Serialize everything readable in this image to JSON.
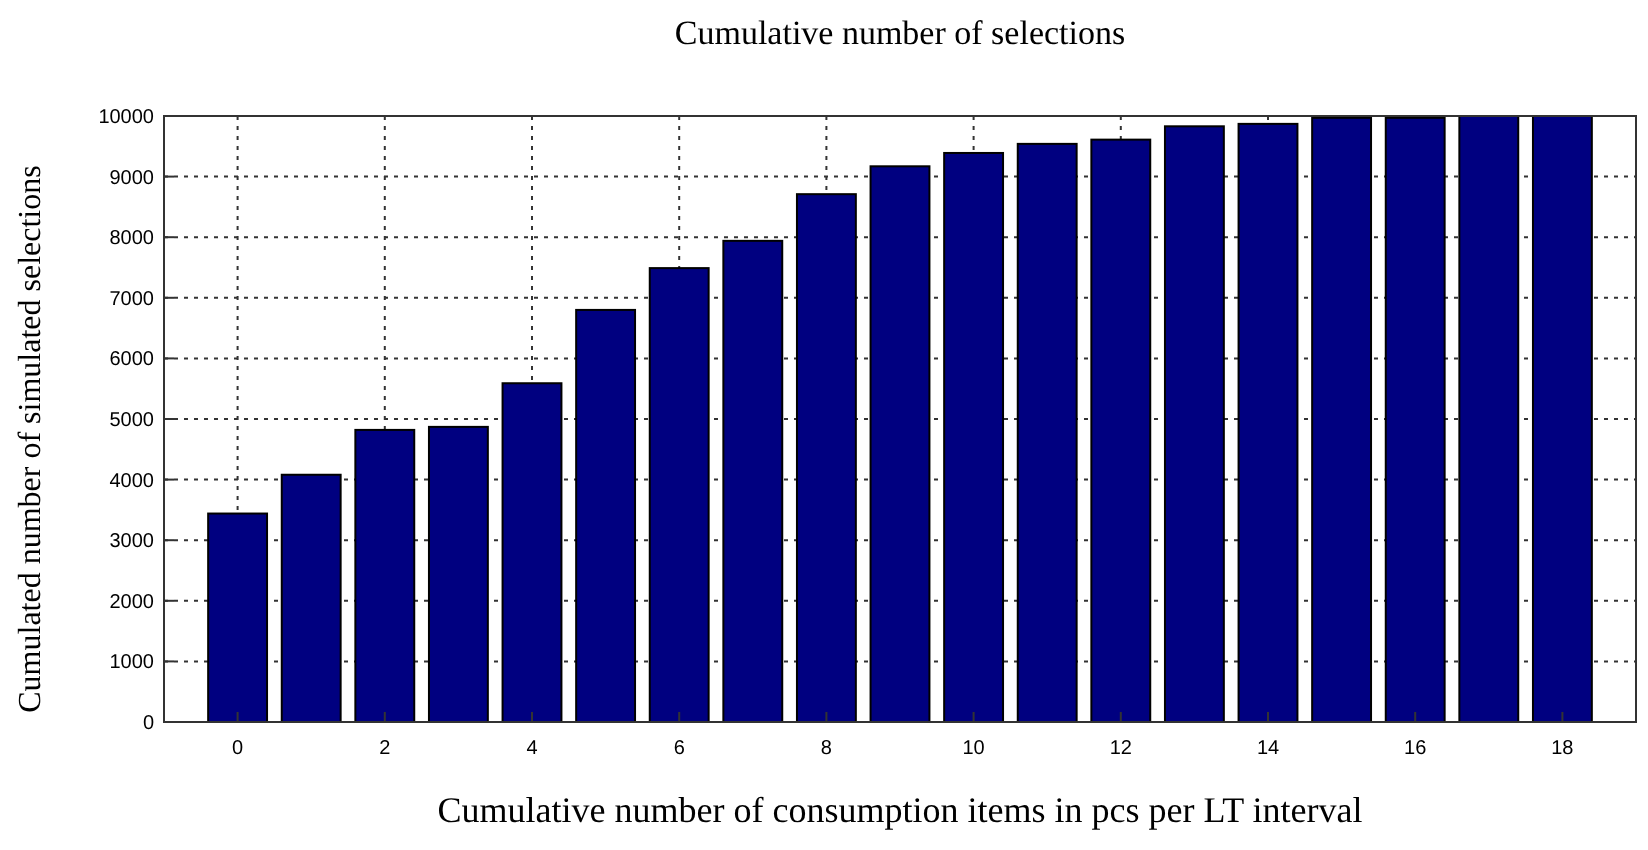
{
  "chart_data": {
    "type": "bar",
    "title": "Cumulative number of selections",
    "xlabel": "Cumulative number of consumption items in pcs per LT interval",
    "ylabel": "Cumulated number of simulated selections",
    "x": [
      0,
      1,
      2,
      3,
      4,
      5,
      6,
      7,
      8,
      9,
      10,
      11,
      12,
      13,
      14,
      15,
      16,
      17,
      18
    ],
    "values": [
      3440,
      4080,
      4820,
      4870,
      5590,
      6800,
      7490,
      7940,
      8710,
      9170,
      9390,
      9540,
      9610,
      9830,
      9870,
      9970,
      9970,
      10000,
      10000
    ],
    "color": "#000080",
    "xlim": [
      -1,
      19
    ],
    "xticks": [
      0,
      2,
      4,
      6,
      8,
      10,
      12,
      14,
      16,
      18
    ],
    "ylim": [
      0,
      10000
    ],
    "yticks": [
      0,
      1000,
      2000,
      3000,
      4000,
      5000,
      6000,
      7000,
      8000,
      9000,
      10000
    ],
    "grid": true
  }
}
